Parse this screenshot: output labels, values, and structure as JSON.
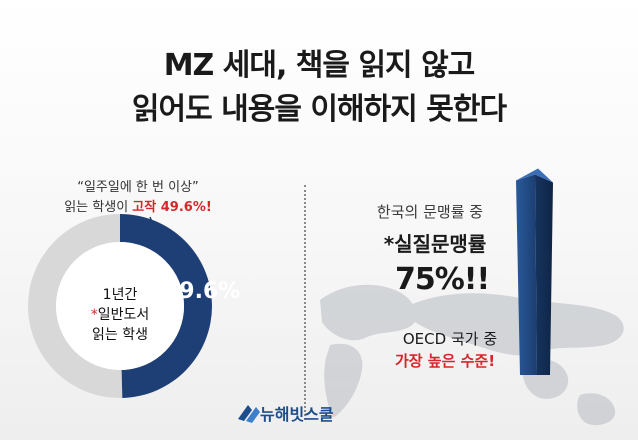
{
  "title": {
    "line1": "MZ 세대, 책을 읽지 않고",
    "line2": "읽어도 내용을 이해하지 못한다"
  },
  "left_panel": {
    "quote_line1": "“일주일에 한 번 이상”",
    "quote_prefix": "읽는 학생이 ",
    "quote_highlight": "고작 49.6%!",
    "center_line1": "1년간",
    "center_star": "*",
    "center_line2": "일반도서",
    "center_line3": "읽는 학생",
    "percent_label": "49.6%"
  },
  "right_panel": {
    "line1": "한국의 문맹률 중",
    "line2": "*실질문맹률",
    "line3": "75%!!",
    "line4": "OECD 국가 중",
    "line5": "가장 높은 수준!"
  },
  "logo": {
    "text": "뉴해빗스쿨",
    "color": "#1d4e8c"
  },
  "colors": {
    "accent_navy": "#1d3f75",
    "ring_gray": "#d8d8d8",
    "highlight_red": "#d7262b"
  },
  "chart_data": [
    {
      "type": "pie",
      "title": "",
      "slices": [
        {
          "label": "1년간 일반도서 읽는 학생",
          "value": 49.6,
          "color": "#1d3f75"
        },
        {
          "label": "",
          "value": 50.4,
          "color": "#d8d8d8"
        }
      ]
    },
    {
      "type": "bar",
      "categories": [
        "한국의 문맹률 중 실질문맹률"
      ],
      "values": [
        75
      ],
      "ylim": [
        0,
        100
      ]
    }
  ]
}
